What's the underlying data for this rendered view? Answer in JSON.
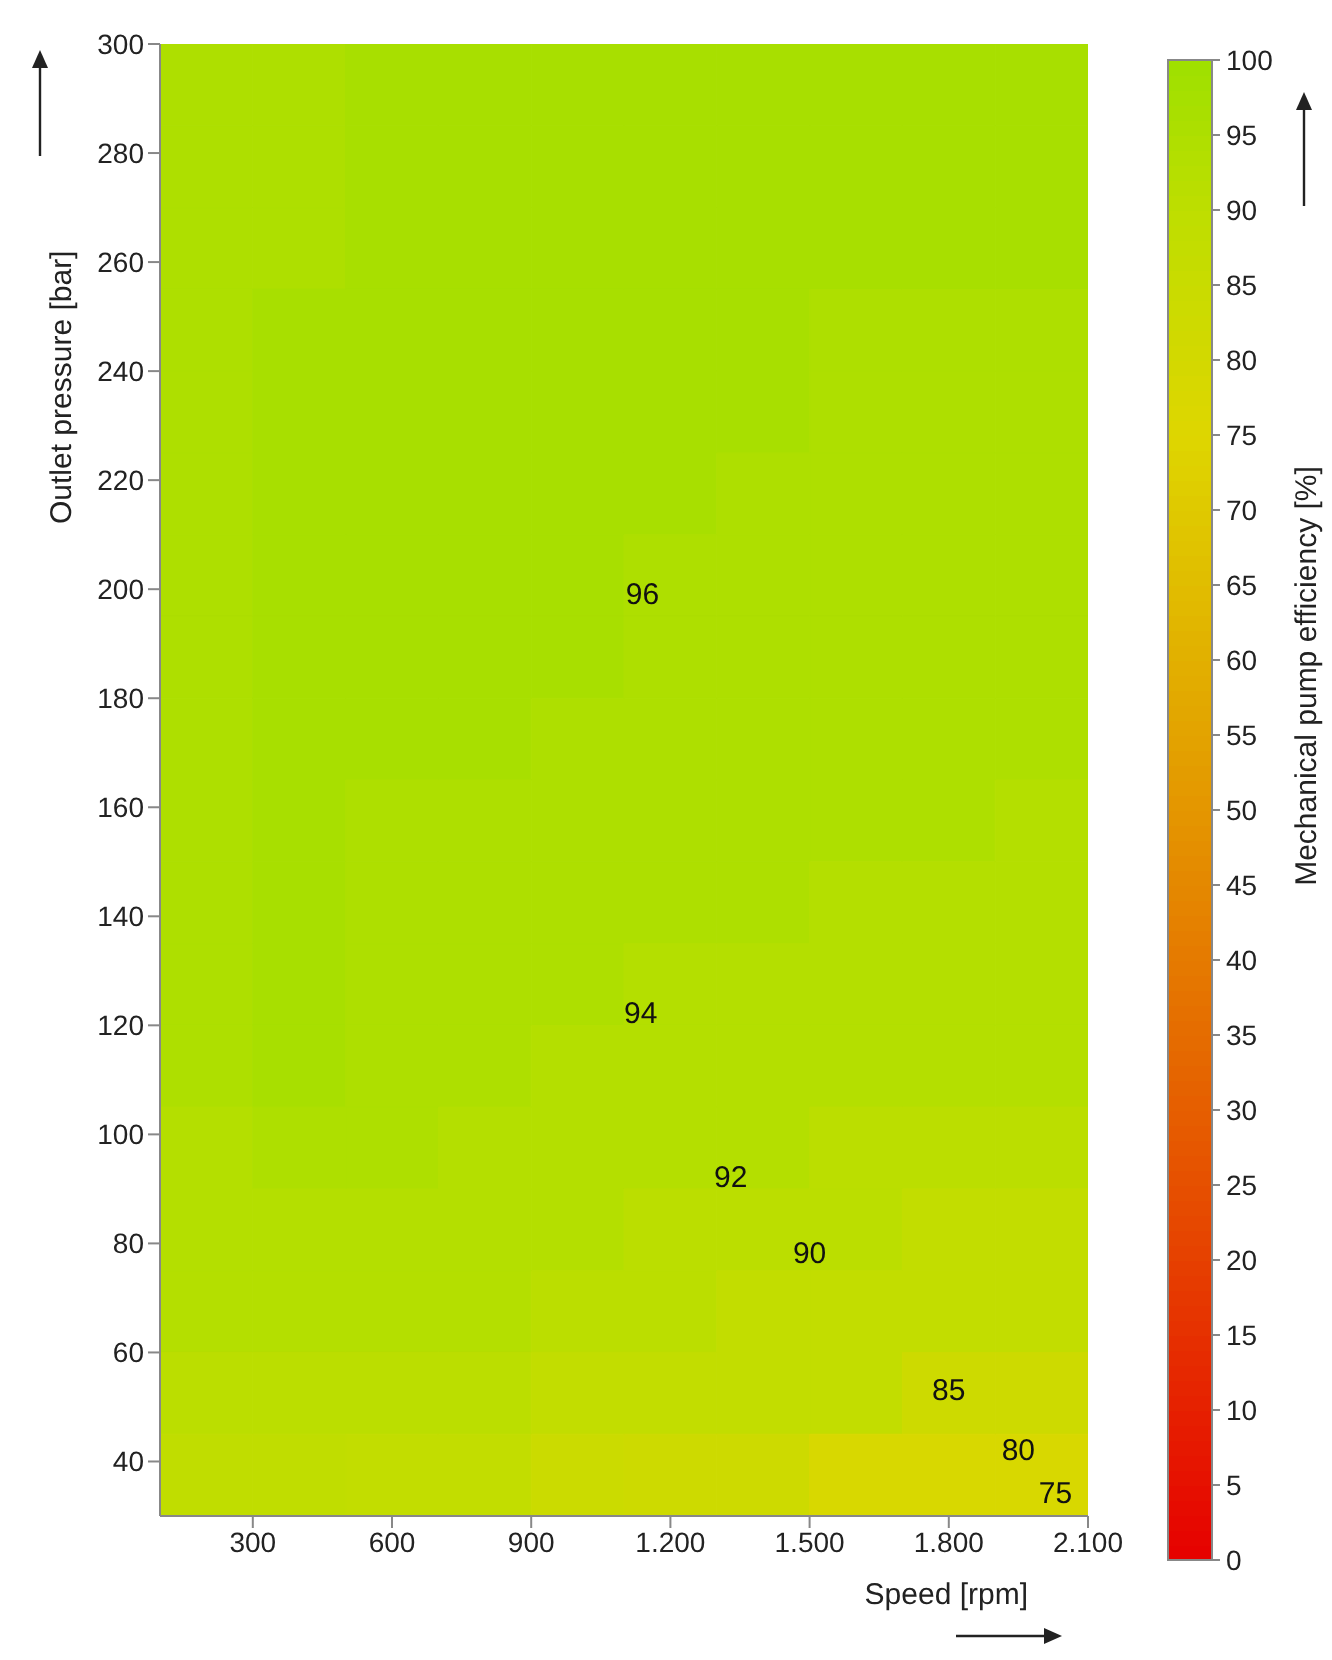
{
  "chart_data": {
    "type": "heatmap",
    "xlabel": "Speed [rpm]",
    "ylabel": "Outlet pressure [bar]",
    "clabel": "Mechanical pump efficiency [%]",
    "xlim": [
      100,
      2100
    ],
    "xticks": [
      {
        "value": 300,
        "label": "300"
      },
      {
        "value": 600,
        "label": "600"
      },
      {
        "value": 900,
        "label": "900"
      },
      {
        "value": 1200,
        "label": "1.200"
      },
      {
        "value": 1500,
        "label": "1.500"
      },
      {
        "value": 1800,
        "label": "1.800"
      },
      {
        "value": 2100,
        "label": "2.100"
      }
    ],
    "ylim": [
      30,
      300
    ],
    "yticks": [
      40,
      60,
      80,
      100,
      120,
      140,
      160,
      180,
      200,
      220,
      240,
      260,
      280,
      300
    ],
    "clim": [
      0,
      100
    ],
    "cticks": [
      0,
      5,
      10,
      15,
      20,
      25,
      30,
      35,
      40,
      45,
      50,
      55,
      60,
      65,
      70,
      75,
      80,
      85,
      90,
      95,
      100
    ],
    "cells": [
      [
        95,
        95,
        97,
        97,
        97,
        97,
        97,
        97,
        97,
        97
      ],
      [
        95,
        95,
        97,
        97,
        97,
        97,
        97,
        97,
        97,
        97
      ],
      [
        95,
        95,
        97,
        97,
        97,
        97,
        97,
        97,
        97,
        97
      ],
      [
        95,
        97,
        97,
        97,
        97,
        97,
        97,
        95,
        95,
        95
      ],
      [
        95,
        97,
        97,
        97,
        97,
        97,
        97,
        95,
        95,
        95
      ],
      [
        95,
        97,
        97,
        97,
        97,
        97,
        95,
        95,
        95,
        95
      ],
      [
        95,
        97,
        97,
        97,
        97,
        95,
        95,
        95,
        95,
        95
      ],
      [
        95,
        97,
        97,
        97,
        97,
        95,
        95,
        95,
        95,
        95
      ],
      [
        95,
        97,
        97,
        97,
        95,
        95,
        95,
        95,
        95,
        95
      ],
      [
        95,
        97,
        95,
        95,
        95,
        95,
        95,
        95,
        95,
        93
      ],
      [
        95,
        97,
        95,
        95,
        95,
        95,
        95,
        93,
        93,
        93
      ],
      [
        95,
        97,
        95,
        95,
        95,
        93,
        93,
        93,
        93,
        93
      ],
      [
        95,
        97,
        95,
        95,
        93,
        93,
        93,
        93,
        93,
        93
      ],
      [
        93,
        95,
        95,
        93,
        93,
        93,
        93,
        91,
        91,
        91
      ],
      [
        93,
        93,
        93,
        93,
        93,
        91,
        91,
        91,
        88,
        88
      ],
      [
        93,
        93,
        93,
        93,
        91,
        91,
        88,
        88,
        88,
        88
      ],
      [
        91,
        91,
        91,
        91,
        88,
        88,
        88,
        88,
        83,
        83
      ],
      [
        89,
        89,
        88,
        88,
        84,
        83,
        83,
        78,
        78,
        78
      ]
    ],
    "annotations": [
      "96",
      "94",
      "92",
      "90",
      "85",
      "80",
      "75"
    ]
  }
}
